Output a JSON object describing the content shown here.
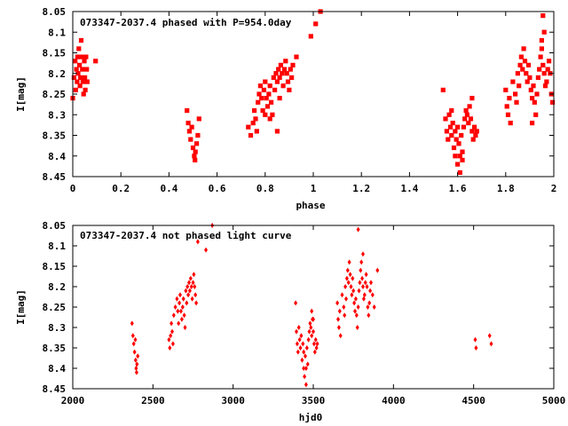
{
  "chart_data": [
    {
      "type": "scatter",
      "title": "073347-2037.4 phased with P=954.0day",
      "xlabel": "phase",
      "ylabel": "I[mag]",
      "xlim": [
        0,
        2
      ],
      "ylim": [
        8.05,
        8.45
      ],
      "y_inverted": true,
      "grid": false,
      "marker_color": "#ff0000",
      "marker": "filled-square",
      "xticks": [
        "0",
        "0.2",
        "0.4",
        "0.6",
        "0.8",
        "1",
        "1.2",
        "1.4",
        "1.6",
        "1.8",
        "2"
      ],
      "xtick_values": [
        0,
        0.2,
        0.4,
        0.6,
        0.8,
        1.0,
        1.2,
        1.4,
        1.6,
        1.8,
        2.0
      ],
      "yticks": [
        "8.05",
        "8.1",
        "8.15",
        "8.2",
        "8.25",
        "8.3",
        "8.35",
        "8.4",
        "8.45"
      ],
      "ytick_values": [
        8.05,
        8.1,
        8.15,
        8.2,
        8.25,
        8.3,
        8.35,
        8.4,
        8.45
      ],
      "points": [
        [
          0.0,
          8.26
        ],
        [
          0.005,
          8.21
        ],
        [
          0.01,
          8.17
        ],
        [
          0.012,
          8.24
        ],
        [
          0.015,
          8.19
        ],
        [
          0.018,
          8.22
        ],
        [
          0.02,
          8.16
        ],
        [
          0.022,
          8.2
        ],
        [
          0.025,
          8.14
        ],
        [
          0.028,
          8.18
        ],
        [
          0.03,
          8.23
        ],
        [
          0.032,
          8.21
        ],
        [
          0.035,
          8.12
        ],
        [
          0.038,
          8.16
        ],
        [
          0.04,
          8.19
        ],
        [
          0.042,
          8.22
        ],
        [
          0.045,
          8.25
        ],
        [
          0.048,
          8.17
        ],
        [
          0.05,
          8.21
        ],
        [
          0.052,
          8.24
        ],
        [
          0.055,
          8.16
        ],
        [
          0.058,
          8.19
        ],
        [
          0.06,
          8.22
        ],
        [
          0.095,
          8.17
        ],
        [
          0.475,
          8.29
        ],
        [
          0.48,
          8.32
        ],
        [
          0.485,
          8.34
        ],
        [
          0.49,
          8.36
        ],
        [
          0.495,
          8.33
        ],
        [
          0.5,
          8.38
        ],
        [
          0.505,
          8.4
        ],
        [
          0.508,
          8.41
        ],
        [
          0.51,
          8.39
        ],
        [
          0.515,
          8.37
        ],
        [
          0.52,
          8.35
        ],
        [
          0.525,
          8.31
        ],
        [
          0.73,
          8.33
        ],
        [
          0.74,
          8.35
        ],
        [
          0.75,
          8.32
        ],
        [
          0.755,
          8.29
        ],
        [
          0.76,
          8.31
        ],
        [
          0.765,
          8.34
        ],
        [
          0.77,
          8.27
        ],
        [
          0.775,
          8.25
        ],
        [
          0.78,
          8.23
        ],
        [
          0.785,
          8.26
        ],
        [
          0.79,
          8.29
        ],
        [
          0.795,
          8.24
        ],
        [
          0.8,
          8.22
        ],
        [
          0.805,
          8.26
        ],
        [
          0.81,
          8.28
        ],
        [
          0.815,
          8.25
        ],
        [
          0.82,
          8.23
        ],
        [
          0.825,
          8.27
        ],
        [
          0.83,
          8.3
        ],
        [
          0.835,
          8.21
        ],
        [
          0.84,
          8.24
        ],
        [
          0.845,
          8.2
        ],
        [
          0.85,
          8.22
        ],
        [
          0.855,
          8.19
        ],
        [
          0.86,
          8.21
        ],
        [
          0.865,
          8.18
        ],
        [
          0.87,
          8.2
        ],
        [
          0.875,
          8.23
        ],
        [
          0.88,
          8.19
        ],
        [
          0.885,
          8.17
        ],
        [
          0.89,
          8.2
        ],
        [
          0.895,
          8.22
        ],
        [
          0.9,
          8.24
        ],
        [
          0.905,
          8.19
        ],
        [
          0.91,
          8.21
        ],
        [
          0.915,
          8.18
        ],
        [
          0.85,
          8.34
        ],
        [
          0.86,
          8.26
        ],
        [
          0.82,
          8.31
        ],
        [
          0.8,
          8.3
        ],
        [
          0.93,
          8.16
        ],
        [
          0.99,
          8.11
        ],
        [
          1.01,
          8.08
        ],
        [
          1.03,
          8.05
        ],
        [
          1.54,
          8.24
        ],
        [
          1.55,
          8.31
        ],
        [
          1.555,
          8.34
        ],
        [
          1.56,
          8.36
        ],
        [
          1.565,
          8.3
        ],
        [
          1.57,
          8.33
        ],
        [
          1.575,
          8.35
        ],
        [
          1.58,
          8.32
        ],
        [
          1.585,
          8.38
        ],
        [
          1.59,
          8.34
        ],
        [
          1.595,
          8.36
        ],
        [
          1.6,
          8.42
        ],
        [
          1.605,
          8.37
        ],
        [
          1.61,
          8.4
        ],
        [
          1.615,
          8.35
        ],
        [
          1.62,
          8.39
        ],
        [
          1.625,
          8.33
        ],
        [
          1.63,
          8.31
        ],
        [
          1.635,
          8.29
        ],
        [
          1.64,
          8.3
        ],
        [
          1.645,
          8.32
        ],
        [
          1.65,
          8.28
        ],
        [
          1.655,
          8.31
        ],
        [
          1.66,
          8.34
        ],
        [
          1.665,
          8.36
        ],
        [
          1.67,
          8.33
        ],
        [
          1.675,
          8.35
        ],
        [
          1.68,
          8.34
        ],
        [
          1.61,
          8.44
        ],
        [
          1.6,
          8.33
        ],
        [
          1.59,
          8.4
        ],
        [
          1.575,
          8.29
        ],
        [
          1.66,
          8.26
        ],
        [
          1.62,
          8.41
        ],
        [
          1.8,
          8.24
        ],
        [
          1.805,
          8.28
        ],
        [
          1.81,
          8.3
        ],
        [
          1.815,
          8.26
        ],
        [
          1.82,
          8.32
        ],
        [
          1.83,
          8.22
        ],
        [
          1.84,
          8.25
        ],
        [
          1.845,
          8.27
        ],
        [
          1.85,
          8.2
        ],
        [
          1.855,
          8.23
        ],
        [
          1.86,
          8.18
        ],
        [
          1.865,
          8.16
        ],
        [
          1.87,
          8.19
        ],
        [
          1.875,
          8.14
        ],
        [
          1.88,
          8.17
        ],
        [
          1.885,
          8.2
        ],
        [
          1.89,
          8.22
        ],
        [
          1.895,
          8.18
        ],
        [
          1.9,
          8.21
        ],
        [
          1.905,
          8.24
        ],
        [
          1.91,
          8.26
        ],
        [
          1.915,
          8.23
        ],
        [
          1.92,
          8.27
        ],
        [
          1.925,
          8.3
        ],
        [
          1.93,
          8.25
        ],
        [
          1.935,
          8.21
        ],
        [
          1.94,
          8.19
        ],
        [
          1.945,
          8.16
        ],
        [
          1.95,
          8.14
        ],
        [
          1.955,
          8.18
        ],
        [
          1.96,
          8.2
        ],
        [
          1.965,
          8.23
        ],
        [
          1.97,
          8.22
        ],
        [
          1.975,
          8.19
        ],
        [
          1.98,
          8.17
        ],
        [
          1.985,
          8.2
        ],
        [
          1.99,
          8.25
        ],
        [
          1.995,
          8.27
        ],
        [
          1.955,
          8.06
        ],
        [
          1.96,
          8.1
        ],
        [
          1.95,
          8.12
        ],
        [
          1.91,
          8.32
        ]
      ]
    },
    {
      "type": "scatter",
      "title": "073347-2037.4 not phased light curve",
      "xlabel": "hjd0",
      "ylabel": "I[mag]",
      "xlim": [
        2000,
        5000
      ],
      "ylim": [
        8.05,
        8.45
      ],
      "y_inverted": true,
      "grid": false,
      "marker_color": "#ff0000",
      "marker": "small-diamond",
      "xticks": [
        "2000",
        "2500",
        "3000",
        "3500",
        "4000",
        "4500",
        "5000"
      ],
      "xtick_values": [
        2000,
        2500,
        3000,
        3500,
        4000,
        4500,
        5000
      ],
      "yticks": [
        "8.05",
        "8.1",
        "8.15",
        "8.2",
        "8.25",
        "8.3",
        "8.35",
        "8.4",
        "8.45"
      ],
      "ytick_values": [
        8.05,
        8.1,
        8.15,
        8.2,
        8.25,
        8.3,
        8.35,
        8.4,
        8.45
      ],
      "points": [
        [
          2370,
          8.29
        ],
        [
          2375,
          8.32
        ],
        [
          2380,
          8.34
        ],
        [
          2385,
          8.36
        ],
        [
          2390,
          8.33
        ],
        [
          2392,
          8.38
        ],
        [
          2395,
          8.4
        ],
        [
          2398,
          8.41
        ],
        [
          2400,
          8.39
        ],
        [
          2405,
          8.37
        ],
        [
          2600,
          8.33
        ],
        [
          2605,
          8.35
        ],
        [
          2610,
          8.32
        ],
        [
          2615,
          8.29
        ],
        [
          2620,
          8.31
        ],
        [
          2625,
          8.34
        ],
        [
          2630,
          8.27
        ],
        [
          2640,
          8.25
        ],
        [
          2650,
          8.23
        ],
        [
          2655,
          8.26
        ],
        [
          2660,
          8.29
        ],
        [
          2665,
          8.24
        ],
        [
          2670,
          8.22
        ],
        [
          2675,
          8.26
        ],
        [
          2680,
          8.28
        ],
        [
          2685,
          8.25
        ],
        [
          2690,
          8.23
        ],
        [
          2695,
          8.27
        ],
        [
          2700,
          8.3
        ],
        [
          2705,
          8.21
        ],
        [
          2710,
          8.24
        ],
        [
          2715,
          8.2
        ],
        [
          2720,
          8.22
        ],
        [
          2725,
          8.19
        ],
        [
          2730,
          8.21
        ],
        [
          2735,
          8.18
        ],
        [
          2740,
          8.2
        ],
        [
          2745,
          8.23
        ],
        [
          2750,
          8.19
        ],
        [
          2755,
          8.17
        ],
        [
          2760,
          8.2
        ],
        [
          2765,
          8.22
        ],
        [
          2770,
          8.24
        ],
        [
          2780,
          8.09
        ],
        [
          2830,
          8.11
        ],
        [
          2870,
          8.05
        ],
        [
          3390,
          8.24
        ],
        [
          3395,
          8.31
        ],
        [
          3400,
          8.34
        ],
        [
          3405,
          8.36
        ],
        [
          3410,
          8.3
        ],
        [
          3415,
          8.33
        ],
        [
          3420,
          8.35
        ],
        [
          3425,
          8.32
        ],
        [
          3430,
          8.38
        ],
        [
          3435,
          8.34
        ],
        [
          3440,
          8.36
        ],
        [
          3445,
          8.42
        ],
        [
          3450,
          8.37
        ],
        [
          3455,
          8.4
        ],
        [
          3460,
          8.35
        ],
        [
          3465,
          8.39
        ],
        [
          3470,
          8.33
        ],
        [
          3475,
          8.31
        ],
        [
          3480,
          8.29
        ],
        [
          3485,
          8.3
        ],
        [
          3490,
          8.32
        ],
        [
          3495,
          8.28
        ],
        [
          3500,
          8.31
        ],
        [
          3505,
          8.34
        ],
        [
          3510,
          8.36
        ],
        [
          3515,
          8.33
        ],
        [
          3520,
          8.35
        ],
        [
          3525,
          8.34
        ],
        [
          3455,
          8.44
        ],
        [
          3440,
          8.4
        ],
        [
          3490,
          8.26
        ],
        [
          3500,
          8.28
        ],
        [
          3650,
          8.24
        ],
        [
          3655,
          8.28
        ],
        [
          3660,
          8.3
        ],
        [
          3665,
          8.26
        ],
        [
          3670,
          8.32
        ],
        [
          3680,
          8.22
        ],
        [
          3690,
          8.25
        ],
        [
          3695,
          8.27
        ],
        [
          3700,
          8.2
        ],
        [
          3705,
          8.23
        ],
        [
          3710,
          8.18
        ],
        [
          3715,
          8.16
        ],
        [
          3720,
          8.19
        ],
        [
          3725,
          8.14
        ],
        [
          3730,
          8.17
        ],
        [
          3735,
          8.2
        ],
        [
          3740,
          8.22
        ],
        [
          3745,
          8.18
        ],
        [
          3750,
          8.21
        ],
        [
          3755,
          8.24
        ],
        [
          3760,
          8.26
        ],
        [
          3765,
          8.23
        ],
        [
          3770,
          8.27
        ],
        [
          3775,
          8.3
        ],
        [
          3780,
          8.25
        ],
        [
          3785,
          8.21
        ],
        [
          3790,
          8.19
        ],
        [
          3795,
          8.16
        ],
        [
          3800,
          8.14
        ],
        [
          3805,
          8.18
        ],
        [
          3810,
          8.2
        ],
        [
          3815,
          8.23
        ],
        [
          3820,
          8.22
        ],
        [
          3825,
          8.19
        ],
        [
          3830,
          8.17
        ],
        [
          3835,
          8.2
        ],
        [
          3840,
          8.25
        ],
        [
          3845,
          8.27
        ],
        [
          3850,
          8.24
        ],
        [
          3855,
          8.21
        ],
        [
          3860,
          8.19
        ],
        [
          3870,
          8.22
        ],
        [
          3880,
          8.25
        ],
        [
          3780,
          8.06
        ],
        [
          3810,
          8.12
        ],
        [
          3900,
          8.16
        ],
        [
          4510,
          8.33
        ],
        [
          4515,
          8.35
        ],
        [
          4600,
          8.32
        ],
        [
          4610,
          8.34
        ]
      ]
    }
  ]
}
